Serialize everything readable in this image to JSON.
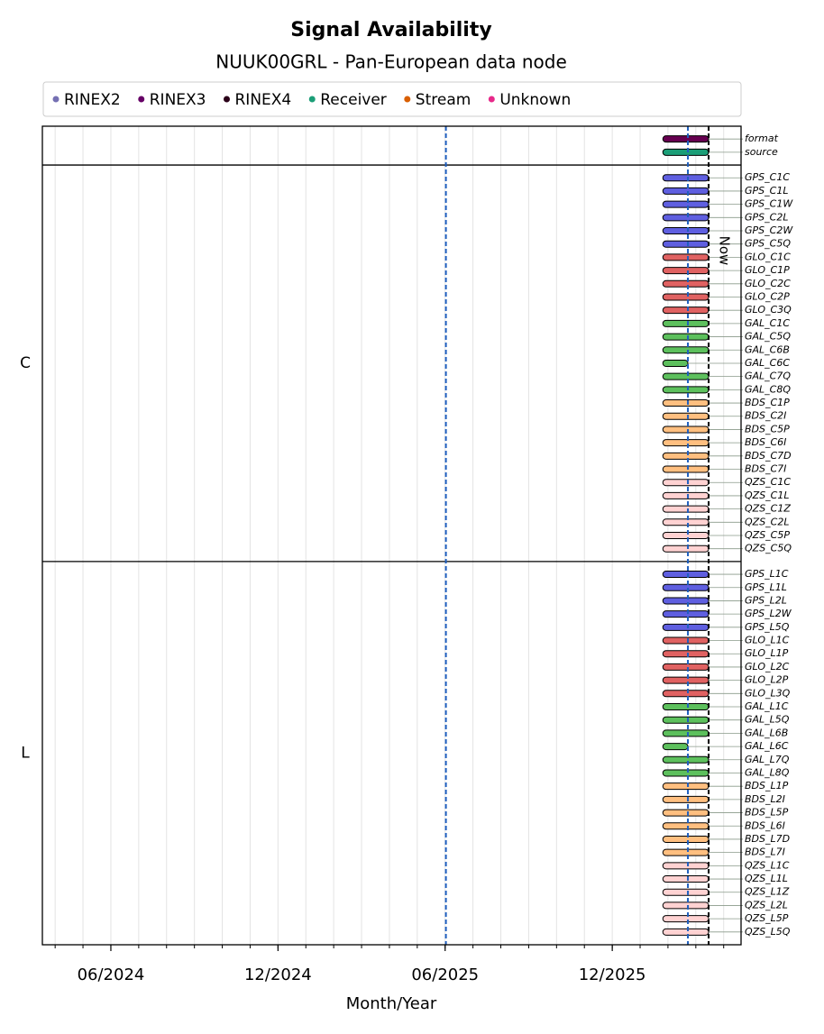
{
  "chart_data": {
    "type": "timeline",
    "title": "Signal Availability",
    "subtitle": "NUUK00GRL - Pan-European data node",
    "xlabel": "Month/Year",
    "xlim": [
      2024.2118,
      2026.302
    ],
    "xticks": [
      {
        "value": 2024.4167,
        "label": "06/2024"
      },
      {
        "value": 2024.9167,
        "label": "12/2024"
      },
      {
        "value": 2025.4167,
        "label": "06/2025"
      },
      {
        "value": 2025.9167,
        "label": "12/2025"
      }
    ],
    "xminorticks": [
      2024.25,
      2024.3333,
      2024.4167,
      2024.5,
      2024.5833,
      2024.6667,
      2024.75,
      2024.8333,
      2024.9167,
      2025,
      2025.0833,
      2025.1667,
      2025.25,
      2025.3333,
      2025.4167,
      2025.5,
      2025.5833,
      2025.6667,
      2025.75,
      2025.8333,
      2025.9167,
      2026,
      2026.0833,
      2026.1667,
      2026.25
    ],
    "grid": true,
    "legend": [
      {
        "name": "RINEX2",
        "color": "#7570b3"
      },
      {
        "name": "RINEX3",
        "color": "#660066"
      },
      {
        "name": "RINEX4",
        "color": "#2a0018"
      },
      {
        "name": "Receiver",
        "color": "#1b9e77"
      },
      {
        "name": "Stream",
        "color": "#d95f02"
      },
      {
        "name": "Unknown",
        "color": "#e7298a"
      }
    ],
    "markers": [
      {
        "x": 2025.419,
        "color": "#1f5fbf"
      },
      {
        "x": 2026.143,
        "color": "#1f5fbf"
      },
      {
        "x": 2026.205,
        "color": "#000000",
        "label": "Now"
      }
    ],
    "panels": [
      {
        "rows": [
          {
            "name": "format",
            "start": 2026.068,
            "end": 2026.205,
            "color": "#660050"
          },
          {
            "name": "source",
            "start": 2026.068,
            "end": 2026.205,
            "color": "#1b9e77"
          }
        ]
      },
      {
        "label": "C",
        "rows": [
          {
            "name": "GPS_C1C",
            "start": 2026.068,
            "end": 2026.205,
            "color": "#5f5fe0"
          },
          {
            "name": "GPS_C1L",
            "start": 2026.068,
            "end": 2026.205,
            "color": "#5f5fe0"
          },
          {
            "name": "GPS_C1W",
            "start": 2026.068,
            "end": 2026.205,
            "color": "#5f5fe0"
          },
          {
            "name": "GPS_C2L",
            "start": 2026.068,
            "end": 2026.205,
            "color": "#5f5fe0"
          },
          {
            "name": "GPS_C2W",
            "start": 2026.068,
            "end": 2026.205,
            "color": "#5f5fe0"
          },
          {
            "name": "GPS_C5Q",
            "start": 2026.068,
            "end": 2026.205,
            "color": "#5f5fe0"
          },
          {
            "name": "GLO_C1C",
            "start": 2026.068,
            "end": 2026.205,
            "color": "#e06262"
          },
          {
            "name": "GLO_C1P",
            "start": 2026.068,
            "end": 2026.205,
            "color": "#e06262"
          },
          {
            "name": "GLO_C2C",
            "start": 2026.068,
            "end": 2026.205,
            "color": "#e06262"
          },
          {
            "name": "GLO_C2P",
            "start": 2026.068,
            "end": 2026.205,
            "color": "#e06262"
          },
          {
            "name": "GLO_C3Q",
            "start": 2026.068,
            "end": 2026.205,
            "color": "#e06262"
          },
          {
            "name": "GAL_C1C",
            "start": 2026.068,
            "end": 2026.205,
            "color": "#5dc05d"
          },
          {
            "name": "GAL_C5Q",
            "start": 2026.068,
            "end": 2026.205,
            "color": "#5dc05d"
          },
          {
            "name": "GAL_C6B",
            "start": 2026.068,
            "end": 2026.205,
            "color": "#5dc05d"
          },
          {
            "name": "GAL_C6C",
            "start": 2026.068,
            "end": 2026.143,
            "color": "#5dc05d"
          },
          {
            "name": "GAL_C7Q",
            "start": 2026.068,
            "end": 2026.205,
            "color": "#5dc05d"
          },
          {
            "name": "GAL_C8Q",
            "start": 2026.068,
            "end": 2026.205,
            "color": "#5dc05d"
          },
          {
            "name": "BDS_C1P",
            "start": 2026.068,
            "end": 2026.205,
            "color": "#ffbf80"
          },
          {
            "name": "BDS_C2I",
            "start": 2026.068,
            "end": 2026.205,
            "color": "#ffbf80"
          },
          {
            "name": "BDS_C5P",
            "start": 2026.068,
            "end": 2026.205,
            "color": "#ffbf80"
          },
          {
            "name": "BDS_C6I",
            "start": 2026.068,
            "end": 2026.205,
            "color": "#ffbf80"
          },
          {
            "name": "BDS_C7D",
            "start": 2026.068,
            "end": 2026.205,
            "color": "#ffbf80"
          },
          {
            "name": "BDS_C7I",
            "start": 2026.068,
            "end": 2026.205,
            "color": "#ffbf80"
          },
          {
            "name": "QZS_C1C",
            "start": 2026.068,
            "end": 2026.205,
            "color": "#ffd2d2"
          },
          {
            "name": "QZS_C1L",
            "start": 2026.068,
            "end": 2026.205,
            "color": "#ffd2d2"
          },
          {
            "name": "QZS_C1Z",
            "start": 2026.068,
            "end": 2026.205,
            "color": "#ffd2d2"
          },
          {
            "name": "QZS_C2L",
            "start": 2026.068,
            "end": 2026.205,
            "color": "#ffd2d2"
          },
          {
            "name": "QZS_C5P",
            "start": 2026.068,
            "end": 2026.205,
            "color": "#ffd2d2"
          },
          {
            "name": "QZS_C5Q",
            "start": 2026.068,
            "end": 2026.205,
            "color": "#ffd2d2"
          }
        ]
      },
      {
        "label": "L",
        "rows": [
          {
            "name": "GPS_L1C",
            "start": 2026.068,
            "end": 2026.205,
            "color": "#5f5fe0"
          },
          {
            "name": "GPS_L1L",
            "start": 2026.068,
            "end": 2026.205,
            "color": "#5f5fe0"
          },
          {
            "name": "GPS_L2L",
            "start": 2026.068,
            "end": 2026.205,
            "color": "#5f5fe0"
          },
          {
            "name": "GPS_L2W",
            "start": 2026.068,
            "end": 2026.205,
            "color": "#5f5fe0"
          },
          {
            "name": "GPS_L5Q",
            "start": 2026.068,
            "end": 2026.205,
            "color": "#5f5fe0"
          },
          {
            "name": "GLO_L1C",
            "start": 2026.068,
            "end": 2026.205,
            "color": "#e06262"
          },
          {
            "name": "GLO_L1P",
            "start": 2026.068,
            "end": 2026.205,
            "color": "#e06262"
          },
          {
            "name": "GLO_L2C",
            "start": 2026.068,
            "end": 2026.205,
            "color": "#e06262"
          },
          {
            "name": "GLO_L2P",
            "start": 2026.068,
            "end": 2026.205,
            "color": "#e06262"
          },
          {
            "name": "GLO_L3Q",
            "start": 2026.068,
            "end": 2026.205,
            "color": "#e06262"
          },
          {
            "name": "GAL_L1C",
            "start": 2026.068,
            "end": 2026.205,
            "color": "#5dc05d"
          },
          {
            "name": "GAL_L5Q",
            "start": 2026.068,
            "end": 2026.205,
            "color": "#5dc05d"
          },
          {
            "name": "GAL_L6B",
            "start": 2026.068,
            "end": 2026.205,
            "color": "#5dc05d"
          },
          {
            "name": "GAL_L6C",
            "start": 2026.068,
            "end": 2026.143,
            "color": "#5dc05d"
          },
          {
            "name": "GAL_L7Q",
            "start": 2026.068,
            "end": 2026.205,
            "color": "#5dc05d"
          },
          {
            "name": "GAL_L8Q",
            "start": 2026.068,
            "end": 2026.205,
            "color": "#5dc05d"
          },
          {
            "name": "BDS_L1P",
            "start": 2026.068,
            "end": 2026.205,
            "color": "#ffbf80"
          },
          {
            "name": "BDS_L2I",
            "start": 2026.068,
            "end": 2026.205,
            "color": "#ffbf80"
          },
          {
            "name": "BDS_L5P",
            "start": 2026.068,
            "end": 2026.205,
            "color": "#ffbf80"
          },
          {
            "name": "BDS_L6I",
            "start": 2026.068,
            "end": 2026.205,
            "color": "#ffbf80"
          },
          {
            "name": "BDS_L7D",
            "start": 2026.068,
            "end": 2026.205,
            "color": "#ffbf80"
          },
          {
            "name": "BDS_L7I",
            "start": 2026.068,
            "end": 2026.205,
            "color": "#ffbf80"
          },
          {
            "name": "QZS_L1C",
            "start": 2026.068,
            "end": 2026.205,
            "color": "#ffd2d2"
          },
          {
            "name": "QZS_L1L",
            "start": 2026.068,
            "end": 2026.205,
            "color": "#ffd2d2"
          },
          {
            "name": "QZS_L1Z",
            "start": 2026.068,
            "end": 2026.205,
            "color": "#ffd2d2"
          },
          {
            "name": "QZS_L2L",
            "start": 2026.068,
            "end": 2026.205,
            "color": "#ffd2d2"
          },
          {
            "name": "QZS_L5P",
            "start": 2026.068,
            "end": 2026.205,
            "color": "#ffd2d2"
          },
          {
            "name": "QZS_L5Q",
            "start": 2026.068,
            "end": 2026.205,
            "color": "#ffd2d2"
          }
        ]
      }
    ]
  }
}
